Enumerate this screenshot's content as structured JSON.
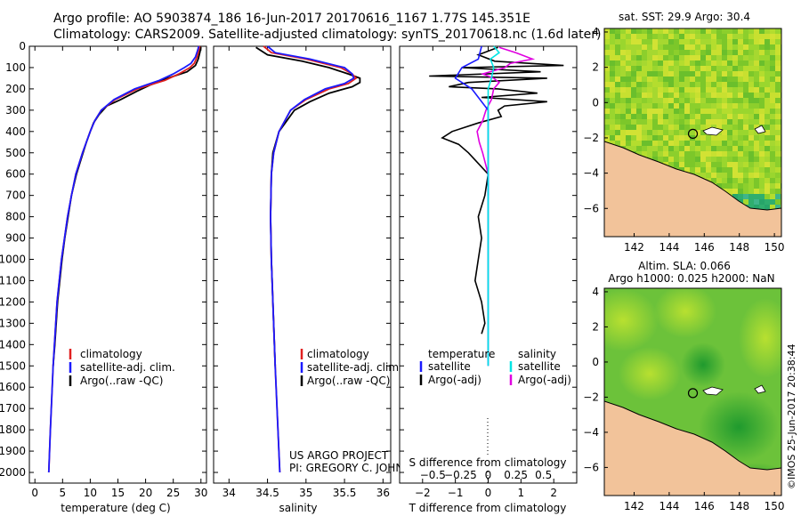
{
  "header": {
    "line1": "Argo profile: AO 5903874_186 16-Jun-2017 20170616_1167 1.77S 145.351E",
    "line2": "Climatology: CARS2009. Satellite-adjusted climatology: synTS_20170618.nc (1.6d later)"
  },
  "colors": {
    "climatology": "#e02020",
    "satellite": "#1a1aff",
    "argo": "#000000",
    "sat_diff": "#00e5e5",
    "argo_adj_diff": "#e000e0",
    "land": "#f2c39a"
  },
  "credit": {
    "line1": "US ARGO PROJECT",
    "line2": "PI: GREGORY C. JOHNSON",
    "imos": "©IMOS 25-Jun-2017 20:38:44"
  },
  "chart_data": [
    {
      "type": "line",
      "panel": "temperature",
      "xlabel": "temperature (deg C)",
      "ylabel": "",
      "xlim": [
        -1,
        31
      ],
      "ylim": [
        2050,
        0
      ],
      "x_ticks": [
        "0",
        "5",
        "10",
        "15",
        "20",
        "25",
        "30"
      ],
      "y_ticks": [
        "0",
        "100",
        "200",
        "300",
        "400",
        "500",
        "600",
        "700",
        "800",
        "900",
        "1000",
        "1100",
        "1200",
        "1300",
        "1400",
        "1500",
        "1600",
        "1700",
        "1800",
        "1900",
        "2000"
      ],
      "legend": [
        "climatology",
        "satellite-adj. clim.",
        "Argo(..raw -QC)"
      ],
      "series": [
        {
          "name": "climatology",
          "depth": [
            0,
            20,
            50,
            80,
            100,
            130,
            160,
            200,
            250,
            300,
            350,
            400,
            500,
            600,
            700,
            800,
            1000,
            1200,
            1500,
            1800,
            2000
          ],
          "values": [
            29.8,
            29.6,
            29.3,
            28.8,
            28.0,
            26.0,
            23.5,
            18.5,
            14.5,
            12.0,
            10.8,
            10.0,
            8.6,
            7.4,
            6.6,
            5.9,
            4.8,
            4.0,
            3.3,
            2.8,
            2.5
          ]
        },
        {
          "name": "satellite-adj. clim.",
          "depth": [
            0,
            20,
            50,
            80,
            100,
            130,
            160,
            200,
            250,
            300,
            350,
            400,
            500,
            600,
            700,
            800,
            1000,
            1200,
            1500,
            1800,
            2000
          ],
          "values": [
            29.6,
            29.4,
            29.0,
            28.2,
            27.0,
            25.0,
            22.5,
            18.0,
            14.3,
            12.0,
            10.8,
            10.0,
            8.6,
            7.4,
            6.6,
            5.9,
            4.8,
            4.0,
            3.3,
            2.8,
            2.5
          ]
        },
        {
          "name": "Argo(..raw -QC)",
          "depth": [
            5,
            30,
            60,
            90,
            120,
            150,
            180,
            210,
            250,
            280,
            320,
            360,
            400,
            450,
            500,
            600,
            700,
            800,
            900,
            1000,
            1200,
            1400,
            1500
          ],
          "values": [
            30.0,
            29.8,
            29.5,
            29.0,
            27.5,
            24.0,
            21.0,
            18.5,
            15.5,
            13.0,
            11.6,
            10.6,
            10.0,
            9.3,
            8.7,
            7.5,
            6.6,
            6.0,
            5.4,
            4.9,
            4.1,
            3.6,
            3.3
          ]
        }
      ]
    },
    {
      "type": "line",
      "panel": "salinity",
      "xlabel": "salinity",
      "xlim": [
        33.8,
        36.1
      ],
      "ylim": [
        2050,
        0
      ],
      "x_ticks": [
        "34",
        "34.5",
        "35",
        "35.5",
        "36"
      ],
      "legend": [
        "climatology",
        "satellite-adj. clim.",
        "Argo(..raw -QC)"
      ],
      "series": [
        {
          "name": "climatology",
          "depth": [
            0,
            30,
            60,
            100,
            130,
            150,
            175,
            200,
            250,
            300,
            400,
            500,
            600,
            800,
            1000,
            1500,
            2000
          ],
          "values": [
            34.45,
            34.55,
            35.0,
            35.45,
            35.6,
            35.65,
            35.55,
            35.3,
            35.0,
            34.8,
            34.65,
            34.58,
            34.55,
            34.54,
            34.55,
            34.6,
            34.66
          ]
        },
        {
          "name": "satellite-adj. clim.",
          "depth": [
            0,
            30,
            60,
            100,
            130,
            150,
            175,
            200,
            250,
            300,
            400,
            500,
            600,
            800,
            1000,
            1500,
            2000
          ],
          "values": [
            34.5,
            34.6,
            35.05,
            35.5,
            35.6,
            35.62,
            35.5,
            35.25,
            34.98,
            34.8,
            34.65,
            34.58,
            34.55,
            34.54,
            34.55,
            34.6,
            34.66
          ]
        },
        {
          "name": "Argo(..raw -QC)",
          "depth": [
            5,
            40,
            70,
            100,
            130,
            150,
            170,
            190,
            220,
            260,
            300,
            400,
            500,
            600,
            800,
            1000,
            1200,
            1500
          ],
          "values": [
            34.35,
            34.5,
            34.95,
            35.3,
            35.55,
            35.7,
            35.7,
            35.6,
            35.3,
            35.05,
            34.85,
            34.65,
            34.57,
            34.55,
            34.54,
            34.55,
            34.57,
            34.6
          ]
        }
      ]
    },
    {
      "type": "line",
      "panel": "difference",
      "top_xlabel": "S difference from climatology",
      "xlabel": "T difference from climatology",
      "s_xlim": [
        -0.8,
        0.8
      ],
      "t_xlim": [
        -2.7,
        2.7
      ],
      "top_ticks": [
        "−0.5",
        "−0.25",
        "0",
        "0.25",
        "0.5"
      ],
      "bottom_ticks": [
        "−2",
        "−1",
        "0",
        "1",
        "2"
      ],
      "ylim": [
        2050,
        0
      ],
      "legend_t": {
        "title": "temperature",
        "items": [
          "satellite",
          "Argo(-adj)"
        ]
      },
      "legend_s": {
        "title": "salinity",
        "items": [
          "satellite",
          "Argo(-adj)"
        ]
      },
      "series": [
        {
          "name": "T satellite",
          "depth": [
            0,
            60,
            100,
            150,
            200,
            300,
            500,
            1000,
            1500
          ],
          "values": [
            -0.2,
            -0.3,
            -0.8,
            -1.0,
            -0.5,
            0.0,
            0.0,
            0.0,
            0.0
          ]
        },
        {
          "name": "T Argo(-adj)",
          "depth": [
            5,
            40,
            70,
            90,
            100,
            120,
            140,
            150,
            170,
            190,
            200,
            220,
            240,
            260,
            280,
            300,
            330,
            360,
            400,
            430,
            460,
            500,
            550,
            600,
            700,
            800,
            900,
            1000,
            1100,
            1200,
            1300,
            1350
          ],
          "values": [
            0.3,
            -0.3,
            0.2,
            2.3,
            -0.8,
            1.6,
            -1.8,
            1.8,
            -0.6,
            -1.2,
            0.3,
            1.5,
            -0.2,
            1.8,
            0.5,
            0.3,
            0.4,
            -0.3,
            -1.1,
            -1.4,
            -0.9,
            -0.6,
            -0.3,
            0.0,
            -0.1,
            -0.3,
            -0.2,
            -0.3,
            -0.4,
            -0.2,
            -0.1,
            -0.2
          ]
        },
        {
          "name": "S satellite",
          "depth": [
            0,
            30,
            60,
            100,
            150,
            200,
            300,
            500,
            1000,
            1500
          ],
          "values": [
            0.05,
            0.1,
            0.02,
            0.05,
            0.03,
            0.0,
            0.0,
            0.0,
            0.0,
            0.0
          ]
        },
        {
          "name": "S Argo(-adj)",
          "depth": [
            5,
            30,
            60,
            80,
            100,
            130,
            150,
            170,
            200,
            250,
            300,
            350,
            400,
            450,
            500,
            600,
            700
          ],
          "values": [
            0.1,
            0.25,
            0.4,
            0.2,
            0.15,
            -0.05,
            0.05,
            0.1,
            0.05,
            0.03,
            -0.02,
            -0.05,
            -0.1,
            -0.08,
            -0.05,
            0.0,
            0.0
          ]
        }
      ]
    },
    {
      "type": "heatmap",
      "panel": "sst-map",
      "title": "sat. SST: 29.9 Argo: 30.4",
      "x_ticks": [
        "142",
        "144",
        "146",
        "148",
        "150"
      ],
      "y_ticks": [
        "4",
        "2",
        "0",
        "−2",
        "−4",
        "−6"
      ],
      "xlim": [
        140.3,
        150.4
      ],
      "ylim": [
        -7.6,
        4.2
      ],
      "float_position": {
        "lon": 145.351,
        "lat": -1.77
      }
    },
    {
      "type": "heatmap",
      "panel": "sla-map",
      "title_line1": "Altim. SLA: 0.066",
      "title_line2": "Argo h1000: 0.025 h2000: NaN",
      "x_ticks": [
        "142",
        "144",
        "146",
        "148",
        "150"
      ],
      "y_ticks": [
        "4",
        "2",
        "0",
        "−2",
        "−4",
        "−6"
      ],
      "xlim": [
        140.3,
        150.4
      ],
      "ylim": [
        -7.6,
        4.2
      ],
      "float_position": {
        "lon": 145.351,
        "lat": -1.77
      }
    }
  ]
}
